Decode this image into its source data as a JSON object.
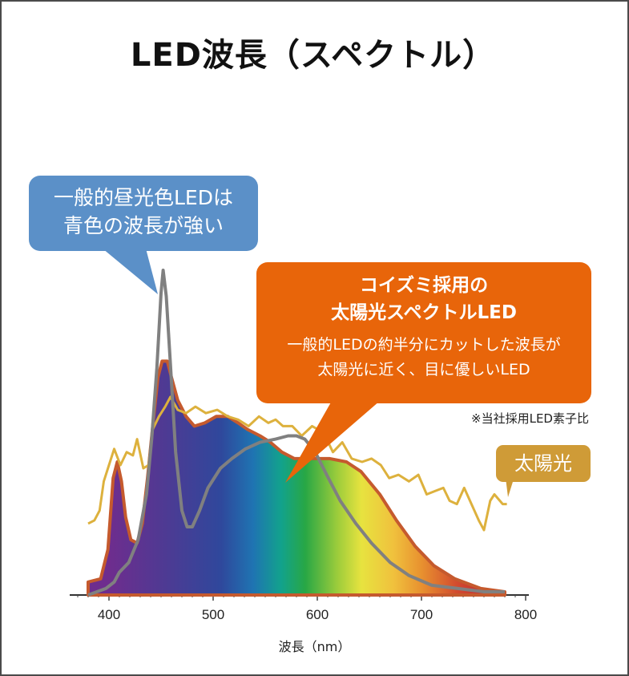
{
  "chart_data": {
    "type": "area",
    "title": "LED波長（スペクトル）",
    "xlabel": "波長（nm）",
    "ylabel": "",
    "xlim": [
      370,
      800
    ],
    "ylim": [
      0,
      1
    ],
    "x_ticks": [
      400,
      500,
      600,
      700,
      800
    ],
    "grid": false,
    "series": [
      {
        "color": "#c55a2e",
        "fill": "spectrum-gradient",
        "points": [
          [
            380,
            0.04
          ],
          [
            392,
            0.05
          ],
          [
            399,
            0.14
          ],
          [
            404,
            0.36
          ],
          [
            408,
            0.41
          ],
          [
            412,
            0.35
          ],
          [
            416,
            0.24
          ],
          [
            421,
            0.17
          ],
          [
            427,
            0.16
          ],
          [
            432,
            0.22
          ],
          [
            437,
            0.36
          ],
          [
            442,
            0.52
          ],
          [
            447,
            0.67
          ],
          [
            451,
            0.72
          ],
          [
            456,
            0.72
          ],
          [
            460,
            0.67
          ],
          [
            466,
            0.6
          ],
          [
            474,
            0.55
          ],
          [
            482,
            0.52
          ],
          [
            492,
            0.53
          ],
          [
            503,
            0.55
          ],
          [
            514,
            0.55
          ],
          [
            524,
            0.53
          ],
          [
            533,
            0.51
          ],
          [
            545,
            0.49
          ],
          [
            555,
            0.47
          ],
          [
            566,
            0.44
          ],
          [
            578,
            0.42
          ],
          [
            595,
            0.42
          ],
          [
            612,
            0.42
          ],
          [
            628,
            0.41
          ],
          [
            642,
            0.38
          ],
          [
            660,
            0.31
          ],
          [
            676,
            0.23
          ],
          [
            694,
            0.15
          ],
          [
            712,
            0.09
          ],
          [
            732,
            0.05
          ],
          [
            757,
            0.02
          ],
          [
            780,
            0.01
          ]
        ]
      },
      {
        "color": "#808080",
        "points": [
          [
            380,
            0.0
          ],
          [
            397,
            0.02
          ],
          [
            405,
            0.04
          ],
          [
            410,
            0.07
          ],
          [
            419,
            0.1
          ],
          [
            428,
            0.17
          ],
          [
            436,
            0.31
          ],
          [
            441,
            0.48
          ],
          [
            446,
            0.7
          ],
          [
            450,
            0.93
          ],
          [
            452,
            1.0
          ],
          [
            455,
            0.92
          ],
          [
            459,
            0.71
          ],
          [
            464,
            0.44
          ],
          [
            470,
            0.26
          ],
          [
            475,
            0.21
          ],
          [
            480,
            0.21
          ],
          [
            487,
            0.26
          ],
          [
            495,
            0.33
          ],
          [
            507,
            0.39
          ],
          [
            518,
            0.42
          ],
          [
            531,
            0.45
          ],
          [
            545,
            0.47
          ],
          [
            560,
            0.48
          ],
          [
            572,
            0.49
          ],
          [
            580,
            0.49
          ],
          [
            588,
            0.48
          ],
          [
            598,
            0.44
          ],
          [
            609,
            0.37
          ],
          [
            622,
            0.29
          ],
          [
            637,
            0.22
          ],
          [
            652,
            0.16
          ],
          [
            670,
            0.1
          ],
          [
            688,
            0.06
          ],
          [
            710,
            0.03
          ],
          [
            735,
            0.02
          ],
          [
            760,
            0.01
          ],
          [
            780,
            0.01
          ]
        ]
      },
      {
        "color": "#ddb13d",
        "points": [
          [
            380,
            0.22
          ],
          [
            386,
            0.23
          ],
          [
            391,
            0.26
          ],
          [
            395,
            0.35
          ],
          [
            400,
            0.4
          ],
          [
            405,
            0.45
          ],
          [
            411,
            0.4
          ],
          [
            417,
            0.44
          ],
          [
            423,
            0.43
          ],
          [
            427,
            0.48
          ],
          [
            433,
            0.39
          ],
          [
            438,
            0.4
          ],
          [
            442,
            0.51
          ],
          [
            448,
            0.55
          ],
          [
            454,
            0.58
          ],
          [
            459,
            0.61
          ],
          [
            466,
            0.57
          ],
          [
            474,
            0.56
          ],
          [
            483,
            0.58
          ],
          [
            493,
            0.56
          ],
          [
            504,
            0.57
          ],
          [
            514,
            0.55
          ],
          [
            524,
            0.54
          ],
          [
            534,
            0.52
          ],
          [
            544,
            0.55
          ],
          [
            553,
            0.53
          ],
          [
            560,
            0.54
          ],
          [
            567,
            0.52
          ],
          [
            576,
            0.52
          ],
          [
            585,
            0.49
          ],
          [
            595,
            0.52
          ],
          [
            606,
            0.5
          ],
          [
            615,
            0.44
          ],
          [
            624,
            0.47
          ],
          [
            633,
            0.42
          ],
          [
            643,
            0.41
          ],
          [
            652,
            0.42
          ],
          [
            661,
            0.4
          ],
          [
            669,
            0.36
          ],
          [
            678,
            0.37
          ],
          [
            688,
            0.35
          ],
          [
            697,
            0.37
          ],
          [
            705,
            0.31
          ],
          [
            713,
            0.32
          ],
          [
            721,
            0.33
          ],
          [
            727,
            0.29
          ],
          [
            734,
            0.28
          ],
          [
            741,
            0.33
          ],
          [
            748,
            0.28
          ],
          [
            755,
            0.23
          ],
          [
            760,
            0.2
          ],
          [
            766,
            0.29
          ],
          [
            770,
            0.31
          ],
          [
            778,
            0.28
          ],
          [
            782,
            0.28
          ]
        ]
      }
    ]
  },
  "callouts": {
    "blue": {
      "line1": "一般的昼光色LEDは",
      "line2": "青色の波長が強い",
      "color": "#5b90c8"
    },
    "orange": {
      "head1": "コイズミ採用の",
      "head2": "太陽光スペクトルLED",
      "body1": "一般的LEDの約半分にカットした波長が",
      "body2": "太陽光に近く、目に優しいLED",
      "color": "#e8650a"
    },
    "note": "※当社採用LED素子比",
    "sun": {
      "label": "太陽光",
      "color": "#cf9b37"
    }
  }
}
